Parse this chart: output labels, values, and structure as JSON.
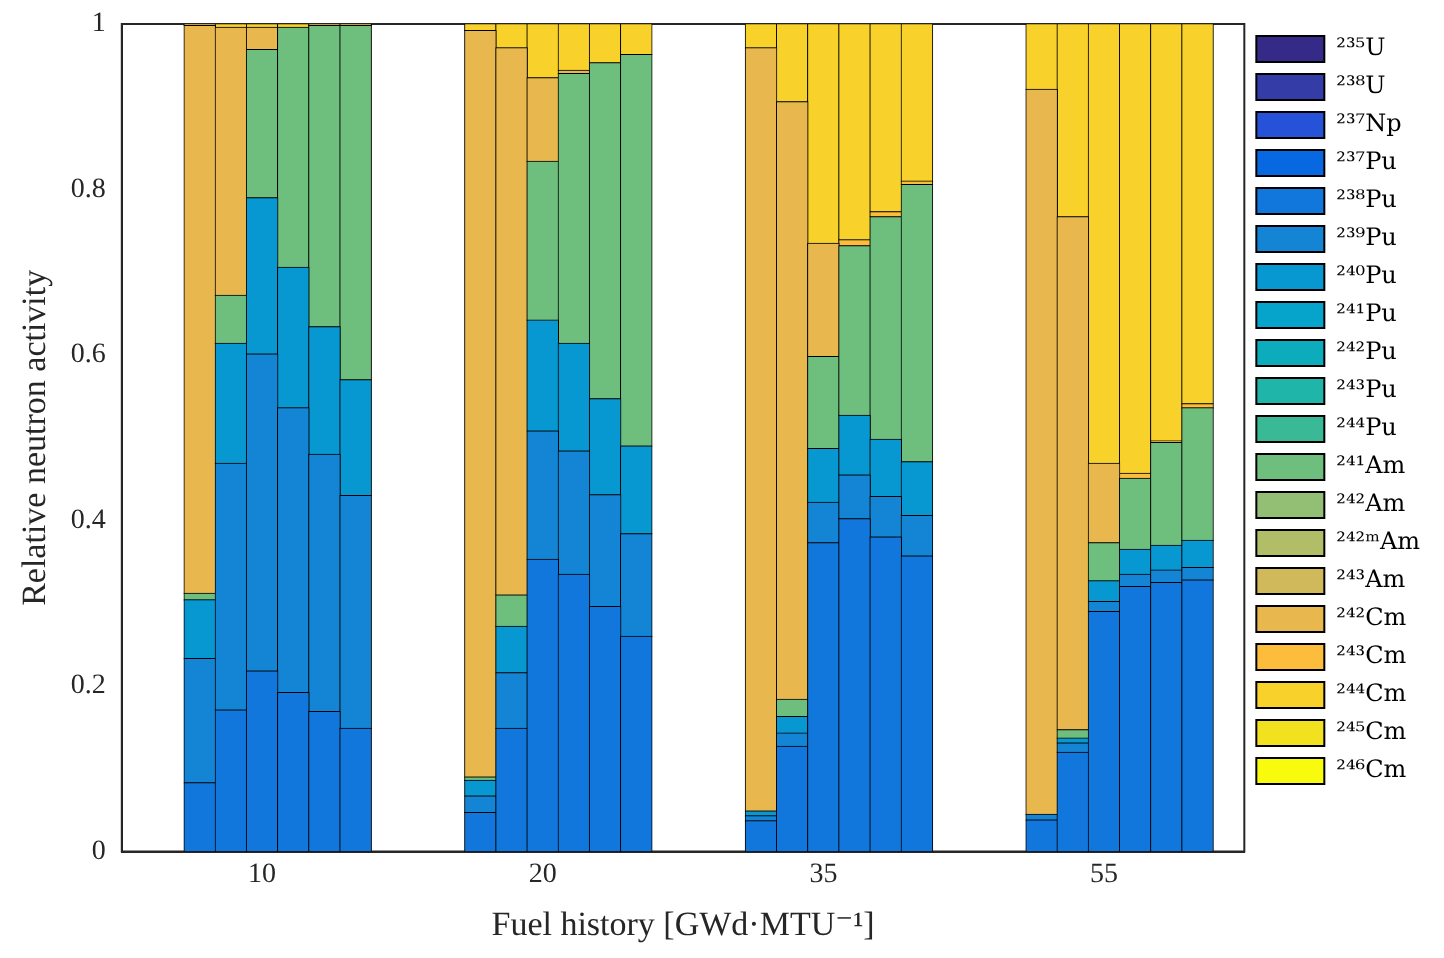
{
  "chart_data": {
    "type": "bar",
    "stacked": true,
    "xlabel": "Fuel history [GWd·MTU⁻¹]",
    "ylabel": "Relative neutron activity",
    "categories": [
      null,
      null,
      null,
      null,
      "10",
      null,
      null,
      null,
      null,
      null,
      null,
      null,
      null,
      "20",
      null,
      null,
      null,
      null,
      null,
      null,
      null,
      null,
      "35",
      null,
      null,
      null,
      null,
      null,
      null,
      null,
      null,
      "55",
      null,
      null,
      null,
      null
    ],
    "ylim": [
      0,
      1
    ],
    "yticks": [
      0,
      0.2,
      0.4,
      0.6,
      0.8,
      1
    ],
    "grid": false,
    "legend": "right",
    "series": [
      {
        "name": "²³⁵U",
        "color": "#352a87",
        "values": [
          null,
          null,
          0,
          0,
          0,
          0,
          0,
          0,
          null,
          null,
          null,
          0,
          0,
          0,
          0,
          0,
          0,
          null,
          null,
          null,
          0,
          0,
          0,
          0,
          0,
          0,
          null,
          null,
          null,
          0,
          0,
          0,
          0,
          0,
          0,
          null
        ]
      },
      {
        "name": "²³⁸U",
        "color": "#343ca8",
        "values": [
          null,
          null,
          0,
          0,
          0,
          0,
          0,
          0,
          null,
          null,
          null,
          0,
          0,
          0,
          0,
          0,
          0,
          null,
          null,
          null,
          0,
          0,
          0,
          0,
          0,
          0,
          null,
          null,
          null,
          0,
          0,
          0,
          0,
          0,
          0,
          null
        ]
      },
      {
        "name": "²³⁷Np",
        "color": "#2552d6",
        "values": [
          null,
          null,
          0,
          0,
          0,
          0,
          0,
          0,
          null,
          null,
          null,
          0,
          0,
          0,
          0,
          0,
          0,
          null,
          null,
          null,
          0,
          0,
          0,
          0,
          0,
          0,
          null,
          null,
          null,
          0,
          0,
          0,
          0,
          0,
          0,
          null
        ]
      },
      {
        "name": "²³⁷Pu",
        "color": "#0868e1",
        "values": [
          null,
          null,
          0,
          0,
          0,
          0,
          0,
          0,
          null,
          null,
          null,
          0,
          0,
          0,
          0,
          0,
          0,
          null,
          null,
          null,
          0,
          0,
          0,
          0,
          0,
          0,
          null,
          null,
          null,
          0,
          0,
          0,
          0,
          0,
          0,
          null
        ]
      },
      {
        "name": "²³⁸Pu",
        "color": "#1177dc",
        "values": [
          null,
          null,
          0.083,
          0.171,
          0.218,
          0.192,
          0.169,
          0.149,
          null,
          null,
          null,
          0.047,
          0.149,
          0.353,
          0.335,
          0.296,
          0.26,
          null,
          null,
          null,
          0.037,
          0.127,
          0.373,
          0.402,
          0.38,
          0.357,
          null,
          null,
          null,
          0.038,
          0.12,
          0.29,
          0.32,
          0.325,
          0.328,
          null
        ]
      },
      {
        "name": "²³⁹Pu",
        "color": "#1485d4",
        "values": [
          null,
          null,
          0.15,
          0.298,
          0.383,
          0.344,
          0.311,
          0.281,
          null,
          null,
          null,
          0.02,
          0.067,
          0.155,
          0.149,
          0.135,
          0.124,
          null,
          null,
          null,
          0.006,
          0.016,
          0.049,
          0.053,
          0.049,
          0.049,
          null,
          null,
          null,
          0.007,
          0.011,
          0.012,
          0.015,
          0.015,
          0.015,
          null
        ]
      },
      {
        "name": "²⁴⁰Pu",
        "color": "#0898d1",
        "values": [
          null,
          null,
          0.071,
          0.145,
          0.189,
          0.17,
          0.154,
          0.14,
          null,
          null,
          null,
          0.019,
          0.056,
          0.134,
          0.13,
          0.116,
          0.106,
          null,
          null,
          null,
          0.006,
          0.02,
          0.065,
          0.072,
          0.069,
          0.065,
          null,
          null,
          null,
          0,
          0.006,
          0.025,
          0.03,
          0.03,
          0.033,
          null
        ]
      },
      {
        "name": "²⁴¹Pu",
        "color": "#06a4ca",
        "values": [
          null,
          null,
          0,
          0,
          0,
          0,
          0,
          0,
          null,
          null,
          null,
          0,
          0,
          0,
          0,
          0,
          0,
          null,
          null,
          null,
          0,
          0,
          0,
          0,
          0,
          0,
          null,
          null,
          null,
          0,
          0,
          0,
          0,
          0,
          0,
          null
        ]
      },
      {
        "name": "²⁴²Pu",
        "color": "#0cacbc",
        "values": [
          null,
          null,
          0,
          0,
          0,
          0,
          0,
          0,
          null,
          null,
          null,
          0,
          0,
          0,
          0,
          0,
          0,
          null,
          null,
          null,
          0,
          0,
          0,
          0,
          0,
          0,
          null,
          null,
          null,
          0,
          0,
          0,
          0,
          0,
          0,
          null
        ]
      },
      {
        "name": "²⁴³Pu",
        "color": "#1fb5a8",
        "values": [
          null,
          null,
          0,
          0,
          0,
          0,
          0,
          0,
          null,
          null,
          null,
          0,
          0,
          0,
          0,
          0,
          0,
          null,
          null,
          null,
          0,
          0,
          0,
          0,
          0,
          0,
          null,
          null,
          null,
          0,
          0,
          0,
          0,
          0,
          0,
          null
        ]
      },
      {
        "name": "²⁴⁴Pu",
        "color": "#3ab997",
        "values": [
          null,
          null,
          0,
          0,
          0,
          0,
          0,
          0,
          null,
          null,
          null,
          0,
          0,
          0,
          0,
          0,
          0,
          null,
          null,
          null,
          0,
          0,
          0,
          0,
          0,
          0,
          null,
          null,
          null,
          0,
          0,
          0,
          0,
          0,
          0,
          null
        ]
      },
      {
        "name": "²⁴¹Am",
        "color": "#6ebe7e",
        "values": [
          null,
          null,
          0.008,
          0.058,
          0.179,
          0.29,
          0.364,
          0.428,
          null,
          null,
          null,
          0.004,
          0.038,
          0.192,
          0.326,
          0.406,
          0.473,
          null,
          null,
          null,
          0,
          0.021,
          0.111,
          0.205,
          0.269,
          0.335,
          null,
          null,
          null,
          0,
          0.01,
          0.046,
          0.086,
          0.124,
          0.16,
          null
        ]
      },
      {
        "name": "²⁴²Am",
        "color": "#92bf73",
        "values": [
          null,
          null,
          0,
          0,
          0,
          0,
          0,
          0,
          null,
          null,
          null,
          0,
          0,
          0,
          0,
          0,
          0,
          null,
          null,
          null,
          0,
          0,
          0,
          0,
          0,
          0,
          null,
          null,
          null,
          0,
          0,
          0,
          0,
          0,
          0,
          null
        ]
      },
      {
        "name": "²⁴²ᵐAm",
        "color": "#b1bd67",
        "values": [
          null,
          null,
          0,
          0,
          0,
          0,
          0,
          0,
          null,
          null,
          null,
          0,
          0,
          0,
          0,
          0,
          0,
          null,
          null,
          null,
          0,
          0,
          0,
          0,
          0,
          0,
          null,
          null,
          null,
          0,
          0,
          0,
          0,
          0,
          0,
          null
        ]
      },
      {
        "name": "²⁴³Am",
        "color": "#d0b95a",
        "values": [
          null,
          null,
          0,
          0,
          0,
          0,
          0,
          0,
          null,
          null,
          null,
          0,
          0,
          0,
          0,
          0,
          0,
          null,
          null,
          null,
          0,
          0,
          0,
          0,
          0,
          0,
          null,
          null,
          null,
          0,
          0,
          0,
          0,
          0,
          0,
          null
        ]
      },
      {
        "name": "²⁴²Cm",
        "color": "#e8b84e",
        "values": [
          null,
          null,
          0.686,
          0.324,
          0.027,
          0,
          0,
          0,
          null,
          null,
          null,
          0.902,
          0.661,
          0.101,
          0.004,
          0,
          0,
          null,
          null,
          null,
          0.922,
          0.722,
          0.137,
          0,
          0,
          0,
          null,
          null,
          null,
          0.876,
          0.62,
          0.096,
          0,
          0,
          0,
          null
        ]
      },
      {
        "name": "²⁴³Cm",
        "color": "#fdbd3c",
        "values": [
          null,
          null,
          0,
          0,
          0,
          0,
          0,
          0,
          null,
          null,
          null,
          0,
          0,
          0,
          0,
          0,
          0,
          null,
          null,
          null,
          0,
          0,
          0,
          0.007,
          0.006,
          0.004,
          null,
          null,
          null,
          0,
          0,
          0,
          0.006,
          0.002,
          0.005,
          null
        ]
      },
      {
        "name": "²⁴⁴Cm",
        "color": "#f8d12a",
        "values": [
          null,
          null,
          0.002,
          0.004,
          0.004,
          0.004,
          0.002,
          0.002,
          null,
          null,
          null,
          0.008,
          0.029,
          0.065,
          0.056,
          0.047,
          0.037,
          null,
          null,
          null,
          0.029,
          0.094,
          0.265,
          0.261,
          0.227,
          0.19,
          null,
          null,
          null,
          0.079,
          0.233,
          0.531,
          0.543,
          0.504,
          0.459,
          null
        ]
      },
      {
        "name": "²⁴⁵Cm",
        "color": "#f2e11e",
        "values": [
          null,
          null,
          0,
          0,
          0,
          0,
          0,
          0,
          null,
          null,
          null,
          0,
          0,
          0,
          0,
          0,
          0,
          null,
          null,
          null,
          0,
          0,
          0,
          0,
          0,
          0,
          null,
          null,
          null,
          0,
          0,
          0,
          0,
          0,
          0,
          null
        ]
      },
      {
        "name": "²⁴⁶Cm",
        "color": "#f9fb0e",
        "values": [
          null,
          null,
          0,
          0,
          0,
          0,
          0,
          0,
          null,
          null,
          null,
          0,
          0,
          0,
          0,
          0,
          0,
          null,
          null,
          null,
          0,
          0,
          0,
          0,
          0,
          0,
          null,
          null,
          null,
          0,
          0,
          0,
          0,
          0,
          0,
          null
        ]
      }
    ]
  }
}
